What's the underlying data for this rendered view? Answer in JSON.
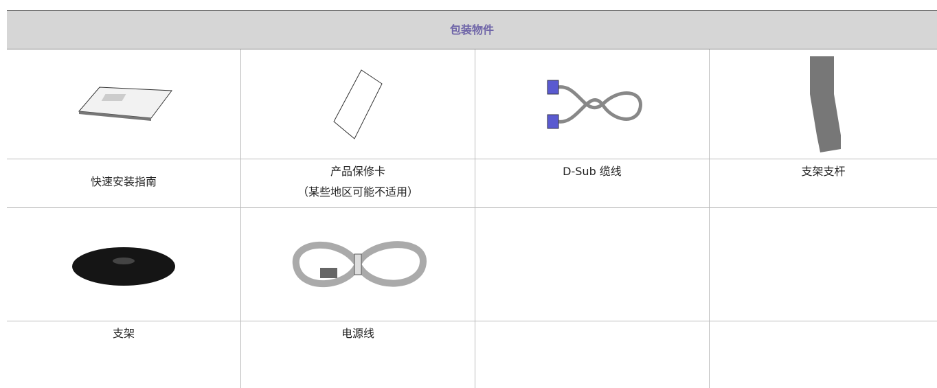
{
  "table": {
    "header": "包装物件",
    "items": [
      {
        "label": "快速安装指南"
      },
      {
        "label": "产品保修卡",
        "note": "（某些地区可能不适用）"
      },
      {
        "label": "D-Sub 缆线"
      },
      {
        "label": "支架支杆"
      },
      {
        "label": "支架"
      },
      {
        "label": "电源线"
      }
    ]
  }
}
